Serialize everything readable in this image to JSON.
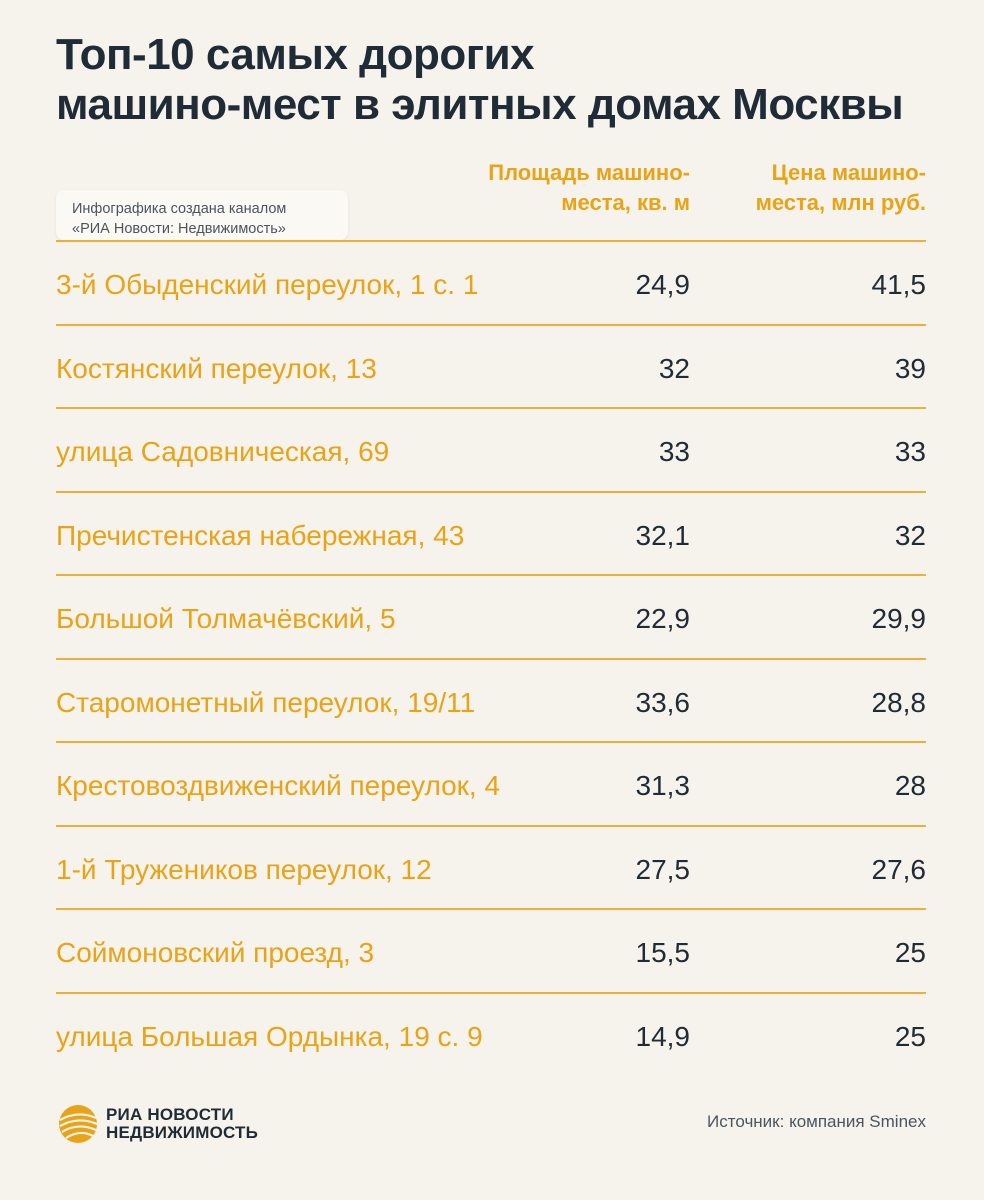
{
  "title_lines": [
    "Топ-10 самых дорогих",
    "машино-мест в элитных домах Москвы"
  ],
  "credit_lines": [
    "Инфографика создана каналом",
    "«РИА Новости: Недвижимость»"
  ],
  "chart_data": {
    "type": "table",
    "columns": [
      {
        "lines": [
          "Площадь машино-",
          "места, кв. м"
        ]
      },
      {
        "lines": [
          "Цена машино-",
          "места, млн руб."
        ]
      }
    ],
    "rows": [
      {
        "address": "3-й Обыденский переулок, 1 с. 1",
        "area": "24,9",
        "price": "41,5"
      },
      {
        "address": "Костянский переулок, 13",
        "area": "32",
        "price": "39"
      },
      {
        "address": "улица Садовническая, 69",
        "area": "33",
        "price": "33"
      },
      {
        "address": "Пречистенская набережная, 43",
        "area": "32,1",
        "price": "32"
      },
      {
        "address": "Большой Толмачёвский, 5",
        "area": "22,9",
        "price": "29,9"
      },
      {
        "address": "Старомонетный переулок, 19/11",
        "area": "33,6",
        "price": "28,8"
      },
      {
        "address": "Крестовоздвиженский переулок, 4",
        "area": "31,3",
        "price": "28"
      },
      {
        "address": "1-й Тружеников переулок, 12",
        "area": "27,5",
        "price": "27,6"
      },
      {
        "address": "Соймоновский проезд, 3",
        "area": "15,5",
        "price": "25"
      },
      {
        "address": "улица Большая Ордынка, 19 с. 9",
        "area": "14,9",
        "price": "25"
      }
    ]
  },
  "logo": {
    "lines": [
      "РИА НОВОСТИ",
      "НЕДВИЖИМОСТЬ"
    ],
    "icon": "ria-globe-icon"
  },
  "source": "Источник: компания Sminex",
  "colors": {
    "accent": "#e8a317",
    "text": "#1f2b36",
    "background": "#f6f3ec"
  }
}
